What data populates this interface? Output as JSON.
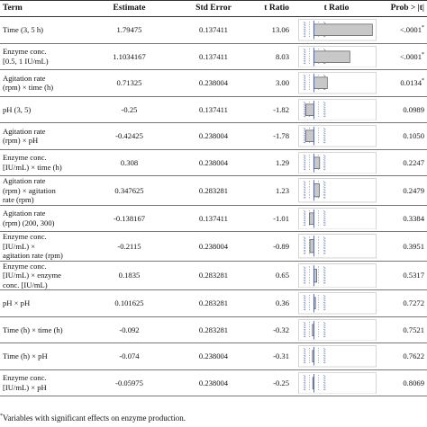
{
  "headers": {
    "term": "Term",
    "estimate": "Estimate",
    "std_error": "Std Error",
    "t_ratio": "t Ratio",
    "t_ratio_chart": "t Ratio",
    "prob": "Prob > |t|"
  },
  "rows": [
    {
      "term_lines": [
        "Time (3, 5 h)"
      ],
      "estimate": "1.79475",
      "std_error": "0.137411",
      "t_ratio": "13.06",
      "t_value": 13.06,
      "prob": "<.0001",
      "sig": true
    },
    {
      "term_lines": [
        "Enzyme conc.",
        "[0.5, 1 IU/mL)"
      ],
      "estimate": "1.1034167",
      "std_error": "0.137411",
      "t_ratio": "8.03",
      "t_value": 8.03,
      "prob": "<.0001",
      "sig": true
    },
    {
      "term_lines": [
        "Agitation rate",
        "(rpm) × time (h)"
      ],
      "estimate": "0.71325",
      "std_error": "0.238004",
      "t_ratio": "3.00",
      "t_value": 3.0,
      "prob": "0.0134",
      "sig": true
    },
    {
      "term_lines": [
        "pH (3, 5)"
      ],
      "estimate": "-0.25",
      "std_error": "0.137411",
      "t_ratio": "-1.82",
      "t_value": -1.82,
      "prob": "0.0989",
      "sig": false
    },
    {
      "term_lines": [
        "Agitation rate",
        "(rpm) × pH"
      ],
      "estimate": "-0.42425",
      "std_error": "0.238004",
      "t_ratio": "-1.78",
      "t_value": -1.78,
      "prob": "0.1050",
      "sig": false
    },
    {
      "term_lines": [
        "Enzyme conc.",
        "[IU/mL) × time (h)"
      ],
      "estimate": "0.308",
      "std_error": "0.238004",
      "t_ratio": "1.29",
      "t_value": 1.29,
      "prob": "0.2247",
      "sig": false
    },
    {
      "term_lines": [
        "Agitation rate",
        "(rpm) × agitation",
        "rate (rpm)"
      ],
      "estimate": "0.347625",
      "std_error": "0.283281",
      "t_ratio": "1.23",
      "t_value": 1.23,
      "prob": "0.2479",
      "sig": false
    },
    {
      "term_lines": [
        "Agitation rate",
        "(rpm) (200, 300)"
      ],
      "estimate": "-0.138167",
      "std_error": "0.137411",
      "t_ratio": "-1.01",
      "t_value": -1.01,
      "prob": "0.3384",
      "sig": false
    },
    {
      "term_lines": [
        "Enzyme conc.",
        "[IU/mL) ×",
        "agitation rate (rpm)"
      ],
      "estimate": "-0.2115",
      "std_error": "0.238004",
      "t_ratio": "-0.89",
      "t_value": -0.89,
      "prob": "0.3951",
      "sig": false
    },
    {
      "term_lines": [
        "Enzyme conc.",
        "[IU/mL) × enzyme",
        "conc. [IU/mL)"
      ],
      "estimate": "0.1835",
      "std_error": "0.283281",
      "t_ratio": "0.65",
      "t_value": 0.65,
      "prob": "0.5317",
      "sig": false
    },
    {
      "term_lines": [
        "pH × pH"
      ],
      "estimate": "0.101625",
      "std_error": "0.283281",
      "t_ratio": "0.36",
      "t_value": 0.36,
      "prob": "0.7272",
      "sig": false
    },
    {
      "term_lines": [
        "Time (h) × time (h)"
      ],
      "estimate": "-0.092",
      "std_error": "0.283281",
      "t_ratio": "-0.32",
      "t_value": -0.32,
      "prob": "0.7521",
      "sig": false
    },
    {
      "term_lines": [
        "Time (h) × pH"
      ],
      "estimate": "-0.074",
      "std_error": "0.238004",
      "t_ratio": "-0.31",
      "t_value": -0.31,
      "prob": "0.7622",
      "sig": false
    },
    {
      "term_lines": [
        "Enzyme conc.",
        "[IU/mL) × pH"
      ],
      "estimate": "-0.05975",
      "std_error": "0.238004",
      "t_ratio": "-0.25",
      "t_value": -0.25,
      "prob": "0.8069",
      "sig": false
    }
  ],
  "sig_marker": "*",
  "footnote": {
    "marker": "*",
    "text": "Variables with significant effects on enzyme production."
  },
  "colors": {
    "bar_fill": "#c8c8c8",
    "bar_stroke": "#555555",
    "ref_line": "#3a5fcd",
    "dotted": "#777777"
  }
}
